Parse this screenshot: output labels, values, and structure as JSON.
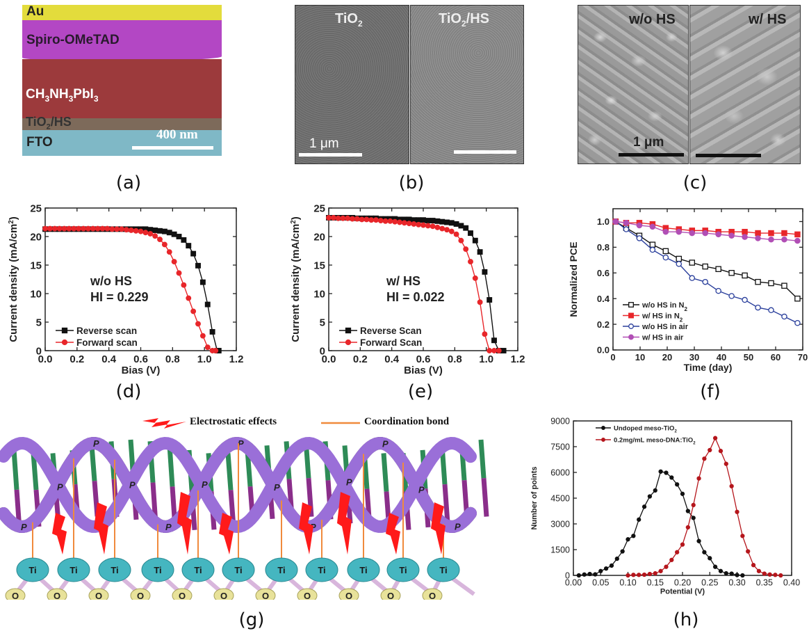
{
  "captions": {
    "a": "(a)",
    "b": "(b)",
    "c": "(c)",
    "d": "(d)",
    "e": "(e)",
    "f": "(f)",
    "g": "(g)",
    "h": "(h)"
  },
  "panel_a": {
    "layers": [
      {
        "label": "Au",
        "color": "#e3dc3c"
      },
      {
        "label": "Spiro-OMeTAD",
        "color": "#b347c4"
      },
      {
        "label": "CH",
        "color": "#9c3a3c"
      },
      {
        "label": "TiO",
        "color": "#7d6a5a"
      },
      {
        "label": "FTO",
        "color": "#7fb8c6"
      }
    ],
    "perovskite_label": {
      "p1": "CH",
      "s1": "3",
      "p2": "NH",
      "s2": "3",
      "p3": "PbI",
      "s3": "3"
    },
    "etl_label": {
      "p1": "TiO",
      "s1": "2",
      "p2": "/HS"
    },
    "scale_bar": "400 nm"
  },
  "panel_b": {
    "left_label": {
      "p1": "TiO",
      "s1": "2"
    },
    "right_label": {
      "p1": "TiO",
      "s1": "2",
      "p2": "/HS"
    },
    "scale_bar": "1 μm"
  },
  "panel_c": {
    "left_label": "w/o HS",
    "right_label": "w/ HS",
    "scale_bar": "1 μm"
  },
  "panel_g": {
    "legend_electrostatic": "Electrostatic effects",
    "legend_coordination": "Coordination bond",
    "phosphate_label": "P",
    "ti_label": "Ti",
    "o_label": "O",
    "colors": {
      "backbone": "#9a6fd8",
      "bolt": "#ff1a1a",
      "bond": "#f08a3c",
      "ti": "#45b6c0",
      "o": "#e8e29a"
    }
  },
  "chart_data": [
    {
      "id": "d",
      "type": "line",
      "xlabel": "Bias (V)",
      "ylabel": "Current density (mA/cm²)",
      "ylabel_parts": {
        "main": "Current density (mA/cm",
        "sup": "2",
        "end": ")"
      },
      "xlim": [
        0,
        1.2
      ],
      "ylim": [
        0,
        25
      ],
      "xticks": [
        "0.0",
        "0.2",
        "0.4",
        "0.6",
        "0.8",
        "1.0",
        "1.2"
      ],
      "yticks": [
        "0",
        "5",
        "10",
        "15",
        "20",
        "25"
      ],
      "annotation": [
        "w/o HS",
        "HI = 0.229"
      ],
      "series": [
        {
          "name": "Reverse scan",
          "color": "#111111",
          "marker": "square",
          "x": [
            0.0,
            0.03,
            0.06,
            0.09,
            0.12,
            0.15,
            0.18,
            0.21,
            0.24,
            0.27,
            0.3,
            0.33,
            0.36,
            0.39,
            0.42,
            0.45,
            0.48,
            0.51,
            0.54,
            0.57,
            0.6,
            0.63,
            0.66,
            0.69,
            0.72,
            0.75,
            0.78,
            0.81,
            0.84,
            0.87,
            0.9,
            0.93,
            0.96,
            0.99,
            1.02,
            1.05,
            1.08,
            1.09
          ],
          "y": [
            21.3,
            21.3,
            21.3,
            21.3,
            21.3,
            21.3,
            21.3,
            21.3,
            21.3,
            21.3,
            21.3,
            21.3,
            21.3,
            21.3,
            21.3,
            21.3,
            21.3,
            21.3,
            21.3,
            21.3,
            21.3,
            21.3,
            21.2,
            21.1,
            21.0,
            20.9,
            20.7,
            20.4,
            20.0,
            19.4,
            18.4,
            17.0,
            14.9,
            12.0,
            8.1,
            3.3,
            0.0,
            0.0
          ]
        },
        {
          "name": "Forward scan",
          "color": "#e8262a",
          "marker": "circle",
          "x": [
            0.0,
            0.03,
            0.06,
            0.09,
            0.12,
            0.15,
            0.18,
            0.21,
            0.24,
            0.27,
            0.3,
            0.33,
            0.36,
            0.39,
            0.42,
            0.45,
            0.48,
            0.51,
            0.54,
            0.57,
            0.6,
            0.63,
            0.66,
            0.69,
            0.72,
            0.75,
            0.78,
            0.81,
            0.84,
            0.87,
            0.9,
            0.93,
            0.96,
            0.99,
            1.02,
            1.05,
            1.07
          ],
          "y": [
            21.4,
            21.4,
            21.4,
            21.4,
            21.4,
            21.4,
            21.4,
            21.4,
            21.4,
            21.4,
            21.4,
            21.4,
            21.4,
            21.4,
            21.3,
            21.3,
            21.3,
            21.2,
            21.1,
            21.0,
            20.9,
            20.7,
            20.5,
            20.1,
            19.5,
            18.6,
            17.3,
            15.6,
            13.6,
            11.5,
            9.2,
            6.9,
            4.7,
            2.6,
            0.6,
            0.0,
            0.0
          ]
        }
      ],
      "legend": "bottom-left"
    },
    {
      "id": "e",
      "type": "line",
      "xlabel": "Bias (V)",
      "ylabel": "Current density (mA/cm²)",
      "ylabel_parts": {
        "main": "Current density (mA/cm",
        "sup": "2",
        "end": ")"
      },
      "xlim": [
        0,
        1.2
      ],
      "ylim": [
        0,
        25
      ],
      "xticks": [
        "0.0",
        "0.2",
        "0.4",
        "0.6",
        "0.8",
        "1.0",
        "1.2"
      ],
      "yticks": [
        "0",
        "5",
        "10",
        "15",
        "20",
        "25"
      ],
      "annotation": [
        "w/ HS",
        "HI = 0.022"
      ],
      "series": [
        {
          "name": "Reverse Scan",
          "color": "#111111",
          "marker": "square",
          "x": [
            0.0,
            0.03,
            0.06,
            0.09,
            0.12,
            0.15,
            0.18,
            0.21,
            0.24,
            0.27,
            0.3,
            0.33,
            0.36,
            0.39,
            0.42,
            0.45,
            0.48,
            0.51,
            0.54,
            0.57,
            0.6,
            0.63,
            0.66,
            0.69,
            0.72,
            0.75,
            0.78,
            0.81,
            0.84,
            0.87,
            0.9,
            0.93,
            0.96,
            0.99,
            1.02,
            1.05,
            1.08,
            1.11
          ],
          "y": [
            23.3,
            23.3,
            23.3,
            23.3,
            23.3,
            23.3,
            23.2,
            23.2,
            23.2,
            23.2,
            23.2,
            23.1,
            23.1,
            23.1,
            23.1,
            23.0,
            23.0,
            23.0,
            22.9,
            22.9,
            22.9,
            22.8,
            22.8,
            22.7,
            22.6,
            22.5,
            22.4,
            22.2,
            21.9,
            21.5,
            20.6,
            19.3,
            17.3,
            13.8,
            8.9,
            1.8,
            0,
            0
          ]
        },
        {
          "name": "Forward Scan",
          "color": "#e8262a",
          "marker": "circle",
          "x": [
            0.0,
            0.03,
            0.06,
            0.09,
            0.12,
            0.15,
            0.18,
            0.21,
            0.24,
            0.27,
            0.3,
            0.33,
            0.36,
            0.39,
            0.42,
            0.45,
            0.48,
            0.51,
            0.54,
            0.57,
            0.6,
            0.63,
            0.66,
            0.69,
            0.72,
            0.75,
            0.78,
            0.81,
            0.84,
            0.87,
            0.9,
            0.93,
            0.96,
            0.99,
            1.02,
            1.05,
            1.08
          ],
          "y": [
            23.3,
            23.3,
            23.2,
            23.2,
            23.2,
            23.1,
            23.1,
            23.0,
            23.0,
            22.9,
            22.9,
            22.8,
            22.7,
            22.7,
            22.6,
            22.5,
            22.4,
            22.3,
            22.2,
            22.1,
            22.0,
            21.9,
            21.8,
            21.6,
            21.4,
            21.2,
            20.9,
            20.4,
            19.3,
            17.8,
            15.6,
            12.7,
            8.5,
            2.9,
            0,
            0,
            0
          ]
        }
      ],
      "legend": "bottom-left"
    },
    {
      "id": "f",
      "type": "line",
      "xlabel": "Time (day)",
      "ylabel": "Normalized PCE",
      "xlim": [
        0,
        72
      ],
      "ylim": [
        0,
        1.1
      ],
      "xticks": [
        "0",
        "10",
        "20",
        "30",
        "40",
        "50",
        "60",
        "70"
      ],
      "yticks": [
        "0.0",
        "0.2",
        "0.4",
        "0.6",
        "0.8",
        "1.0"
      ],
      "series": [
        {
          "name": "w/o HS in N",
          "sub": "2",
          "color": "#111111",
          "marker": "square-open",
          "x": [
            1,
            5,
            10,
            15,
            20,
            25,
            30,
            35,
            40,
            45,
            50,
            55,
            60,
            65,
            70
          ],
          "y": [
            1.0,
            0.95,
            0.89,
            0.82,
            0.77,
            0.71,
            0.68,
            0.65,
            0.63,
            0.6,
            0.58,
            0.53,
            0.52,
            0.5,
            0.4
          ]
        },
        {
          "name": "w/ HS in N",
          "sub": "2",
          "color": "#e8262a",
          "marker": "square",
          "x": [
            1,
            5,
            10,
            15,
            20,
            25,
            30,
            35,
            40,
            45,
            50,
            55,
            60,
            65,
            70
          ],
          "y": [
            1.0,
            0.99,
            0.99,
            0.98,
            0.95,
            0.94,
            0.93,
            0.93,
            0.92,
            0.92,
            0.92,
            0.91,
            0.91,
            0.91,
            0.9
          ]
        },
        {
          "name": "w/o HS in air",
          "sub": "",
          "color": "#2a3f9c",
          "marker": "circle-open",
          "x": [
            1,
            5,
            10,
            15,
            20,
            25,
            30,
            35,
            40,
            45,
            50,
            55,
            60,
            65,
            70
          ],
          "y": [
            1.0,
            0.94,
            0.87,
            0.78,
            0.72,
            0.67,
            0.56,
            0.53,
            0.46,
            0.42,
            0.39,
            0.33,
            0.31,
            0.26,
            0.21
          ]
        },
        {
          "name": "w/ HS in air",
          "sub": "",
          "color": "#b14fb5",
          "marker": "circle",
          "x": [
            1,
            5,
            10,
            15,
            20,
            25,
            30,
            35,
            40,
            45,
            50,
            55,
            60,
            65,
            70
          ],
          "y": [
            1.0,
            0.99,
            0.97,
            0.96,
            0.92,
            0.92,
            0.91,
            0.91,
            0.9,
            0.89,
            0.88,
            0.87,
            0.86,
            0.86,
            0.85
          ]
        }
      ],
      "legend": "bottom-left"
    },
    {
      "id": "h",
      "type": "line",
      "xlabel": "Potential (V)",
      "ylabel": "Number of points",
      "xlim": [
        0,
        0.4
      ],
      "ylim": [
        0,
        9000
      ],
      "xticks": [
        "0.00",
        "0.05",
        "0.10",
        "0.15",
        "0.20",
        "0.25",
        "0.30",
        "0.35",
        "0.40"
      ],
      "yticks": [
        "0",
        "1500",
        "3000",
        "4500",
        "6000",
        "7500",
        "9000"
      ],
      "series": [
        {
          "name": "Undoped meso-TiO",
          "sub": "2",
          "color": "#111111",
          "marker": "circle",
          "x": [
            0.01,
            0.02,
            0.03,
            0.04,
            0.05,
            0.06,
            0.07,
            0.08,
            0.09,
            0.1,
            0.11,
            0.12,
            0.13,
            0.14,
            0.15,
            0.16,
            0.17,
            0.18,
            0.19,
            0.2,
            0.21,
            0.22,
            0.23,
            0.24,
            0.25,
            0.26,
            0.27,
            0.28,
            0.29,
            0.3,
            0.31
          ],
          "y": [
            0,
            50,
            80,
            60,
            250,
            400,
            570,
            970,
            1400,
            2100,
            2300,
            3250,
            4000,
            4600,
            4950,
            6050,
            5980,
            5700,
            5300,
            4750,
            3750,
            3350,
            2000,
            1350,
            1000,
            500,
            250,
            120,
            100,
            20,
            0
          ]
        },
        {
          "name": "0.2mg/mL meso-DNA:TiO",
          "sub": "2",
          "color": "#b5161c",
          "marker": "circle",
          "x": [
            0.1,
            0.11,
            0.12,
            0.13,
            0.14,
            0.15,
            0.16,
            0.17,
            0.18,
            0.19,
            0.2,
            0.21,
            0.22,
            0.23,
            0.24,
            0.25,
            0.26,
            0.27,
            0.28,
            0.29,
            0.3,
            0.31,
            0.32,
            0.33,
            0.34,
            0.35,
            0.36,
            0.37,
            0.38
          ],
          "y": [
            0,
            30,
            30,
            40,
            80,
            120,
            250,
            500,
            900,
            1350,
            1800,
            2800,
            4100,
            5650,
            6800,
            7300,
            8000,
            7250,
            6500,
            5200,
            3700,
            2300,
            1400,
            600,
            250,
            100,
            50,
            30,
            0
          ]
        }
      ],
      "legend": "top-left"
    }
  ]
}
